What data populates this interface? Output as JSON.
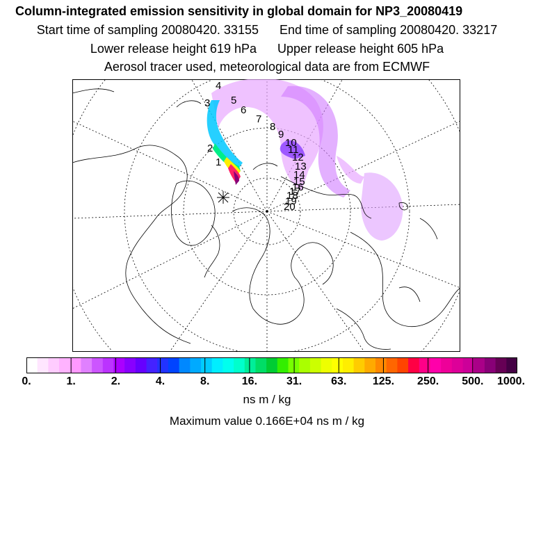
{
  "header": {
    "title": "Column-integrated emission sensitivity in global domain for NP3_20080419",
    "start_time": "Start time of sampling 20080420. 33155",
    "end_time": "End time of sampling 20080420. 33217",
    "lower_release": "Lower release height  619 hPa",
    "upper_release": "Upper release height  605 hPa",
    "tracer_info": "Aerosol tracer used, meteorological data are from ECMWF"
  },
  "map": {
    "trajectory_labels": [
      "1",
      "2",
      "3",
      "4",
      "5",
      "6",
      "7",
      "8",
      "9",
      "10",
      "11",
      "12",
      "13",
      "14",
      "15",
      "16",
      "17",
      "18",
      "19",
      "20"
    ]
  },
  "colorbar": {
    "tick_labels": [
      "0.",
      "1.",
      "2.",
      "4.",
      "8.",
      "16.",
      "31.",
      "63.",
      "125.",
      "250.",
      "500.",
      "1000."
    ],
    "colors": [
      "#ffffff",
      "#ffe6ff",
      "#ffccff",
      "#ffb3ff",
      "#ff99ff",
      "#e080ff",
      "#cc55ff",
      "#bb33ff",
      "#aa00ff",
      "#8800ff",
      "#6600ff",
      "#4422ff",
      "#2233ff",
      "#0044ff",
      "#0088ff",
      "#00aaff",
      "#00ccff",
      "#00eeff",
      "#00ffee",
      "#00ffcc",
      "#00ee99",
      "#00dd66",
      "#00cc33",
      "#33ee00",
      "#77ff00",
      "#aaff00",
      "#ccff00",
      "#eeff00",
      "#ffff00",
      "#ffee00",
      "#ffcc00",
      "#ffaa00",
      "#ff8800",
      "#ff6600",
      "#ff4400",
      "#ff0044",
      "#ff0088",
      "#ff00aa",
      "#ee0099",
      "#dd0099",
      "#cc0099",
      "#aa0088",
      "#880077",
      "#660055",
      "#440044"
    ]
  },
  "footer": {
    "units": "ns m / kg",
    "max_value": "Maximum value  0.166E+04 ns m / kg"
  }
}
